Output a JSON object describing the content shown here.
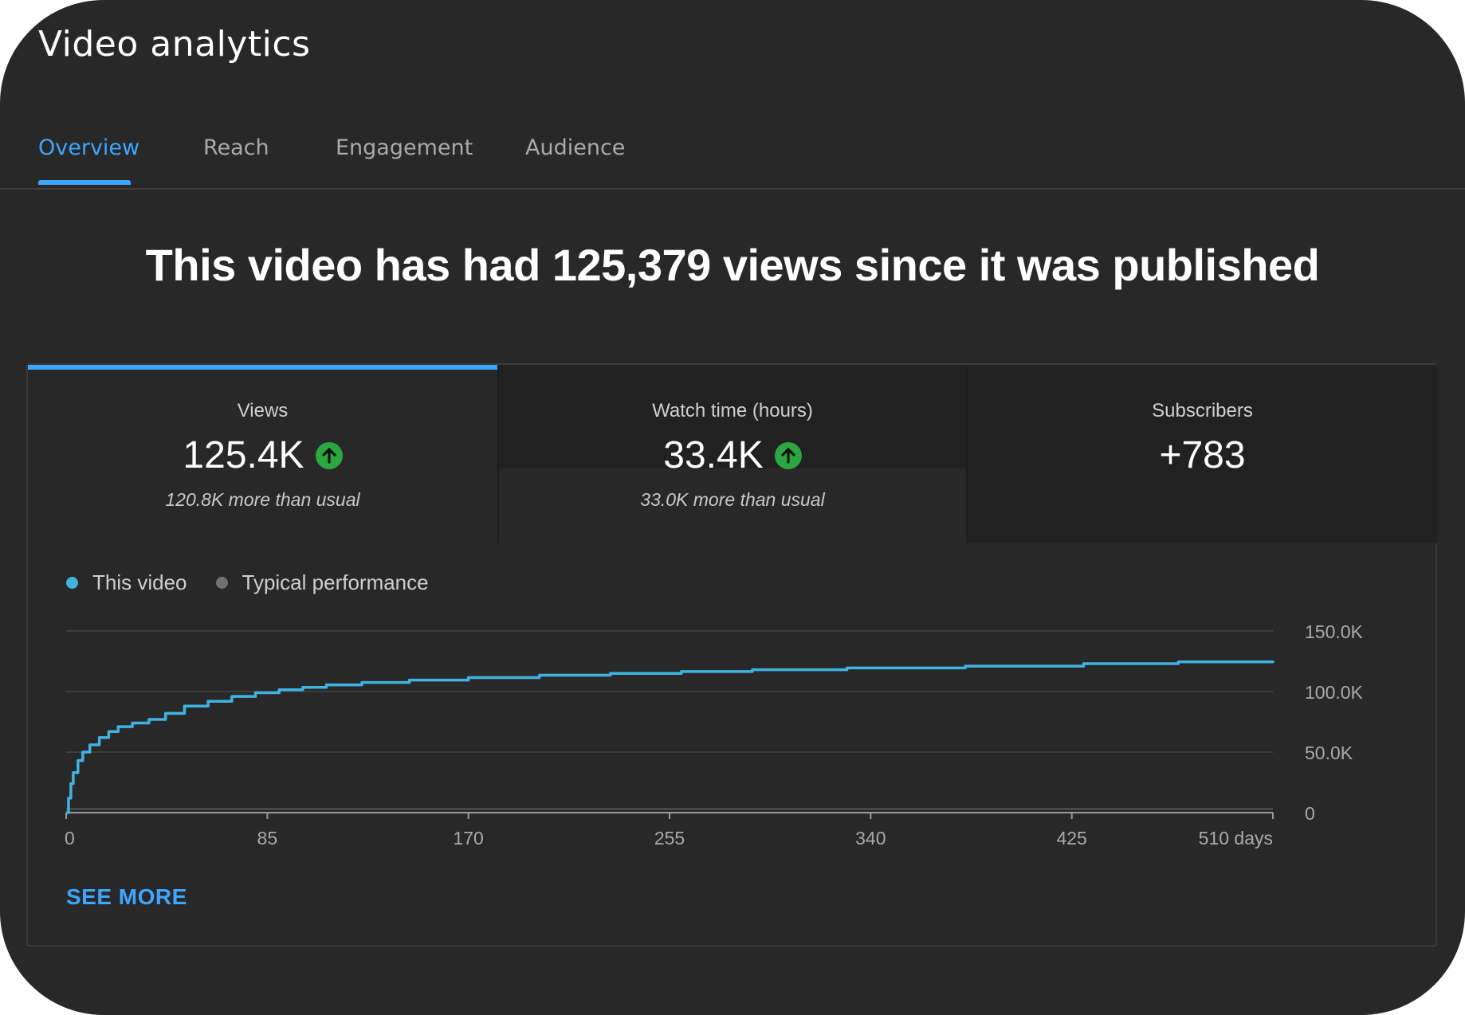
{
  "app": {
    "title": "Video analytics"
  },
  "tabs": [
    {
      "label": "Overview",
      "active": true
    },
    {
      "label": "Reach"
    },
    {
      "label": "Engagement"
    },
    {
      "label": "Audience"
    }
  ],
  "headline": "This video has had 125,379 views since it was published",
  "metrics": [
    {
      "label": "Views",
      "value": "125.4K",
      "trend_icon": "arrow-up-icon",
      "note": "120.8K more than usual",
      "selected": true
    },
    {
      "label": "Watch time (hours)",
      "value": "33.4K",
      "trend_icon": "arrow-up-icon",
      "note": "33.0K more than usual"
    },
    {
      "label": "Subscribers",
      "value": "+783"
    }
  ],
  "colors": {
    "accent": "#3ea6ff",
    "line": "#3fb3e2",
    "trend_up": "#2ba640",
    "typical": "#717171"
  },
  "see_more": "SEE MORE",
  "chart_data": {
    "type": "line",
    "legend": [
      "This video",
      "Typical performance"
    ],
    "x_tick_labels": [
      "0",
      "85",
      "170",
      "255",
      "340",
      "425",
      "510 days"
    ],
    "y_tick_labels": [
      "0",
      "50.0K",
      "100.0K",
      "150.0K"
    ],
    "xlim": [
      0,
      510
    ],
    "ylim": [
      0,
      150000
    ],
    "y_axis_side": "right",
    "grid": true,
    "legend_position": "top-left",
    "series": [
      {
        "name": "This video",
        "x": [
          0,
          1,
          2,
          3,
          5,
          7,
          10,
          14,
          18,
          22,
          28,
          35,
          42,
          50,
          60,
          70,
          80,
          90,
          100,
          110,
          125,
          145,
          170,
          200,
          230,
          260,
          290,
          330,
          380,
          430,
          470,
          510
        ],
        "y": [
          0,
          12000,
          24000,
          33000,
          43000,
          50000,
          56000,
          62000,
          67000,
          71000,
          74000,
          77000,
          82000,
          88000,
          92000,
          96000,
          99000,
          101500,
          103500,
          105500,
          107500,
          109500,
          111500,
          113500,
          115000,
          116500,
          118000,
          119500,
          121000,
          123000,
          124500,
          125379
        ]
      },
      {
        "name": "Typical performance",
        "x": [
          0,
          510
        ],
        "y": [
          3000,
          3000
        ]
      }
    ]
  }
}
